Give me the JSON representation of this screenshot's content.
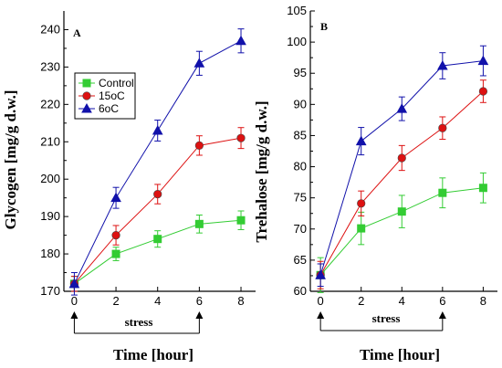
{
  "chart_data": [
    {
      "type": "line",
      "panel": "A",
      "title": "",
      "xlabel": "Time [hour]",
      "ylabel": "Glycogen [mg/g d.w.]",
      "x": [
        0,
        2,
        4,
        6,
        8
      ],
      "xlim": [
        -0.5,
        8.7
      ],
      "ylim": [
        170,
        245
      ],
      "yticks": [
        170,
        180,
        190,
        200,
        210,
        220,
        230,
        240
      ],
      "xticks": [
        0,
        2,
        4,
        6,
        8
      ],
      "grid": false,
      "legend": "top-left",
      "series": [
        {
          "name": "Control",
          "color": "#33cc33",
          "marker": "square",
          "values": [
            172,
            180,
            184,
            188,
            189
          ],
          "errors": [
            2,
            1.8,
            2.2,
            2.4,
            2.5
          ]
        },
        {
          "name": "15oC",
          "color": "#dd1111",
          "marker": "circle",
          "values": [
            172,
            185,
            196,
            209,
            211
          ],
          "errors": [
            2,
            2.6,
            2.6,
            2.6,
            2.8
          ]
        },
        {
          "name": "6oC",
          "color": "#1111aa",
          "marker": "triangle",
          "values": [
            172,
            195,
            213,
            231,
            237
          ],
          "errors": [
            3,
            2.8,
            2.8,
            3.2,
            3.2
          ]
        }
      ],
      "annotation": {
        "text": "stress",
        "from": 0,
        "to": 6
      }
    },
    {
      "type": "line",
      "panel": "B",
      "title": "",
      "xlabel": "Time [hour]",
      "ylabel": "Trehalose [mg/g d.w.]",
      "x": [
        0,
        2,
        4,
        6,
        8
      ],
      "xlim": [
        -0.5,
        8.7
      ],
      "ylim": [
        60,
        105
      ],
      "yticks": [
        60,
        65,
        70,
        75,
        80,
        85,
        90,
        95,
        100,
        105
      ],
      "xticks": [
        0,
        2,
        4,
        6,
        8
      ],
      "grid": false,
      "series": [
        {
          "name": "Control",
          "color": "#33cc33",
          "marker": "square",
          "values": [
            62.6,
            70.1,
            72.8,
            75.8,
            76.6
          ],
          "errors": [
            2.8,
            2.6,
            2.6,
            2.4,
            2.4
          ]
        },
        {
          "name": "15oC",
          "color": "#dd1111",
          "marker": "circle",
          "values": [
            62.6,
            74.1,
            81.4,
            86.2,
            92.1
          ],
          "errors": [
            2.2,
            2.0,
            2.0,
            1.8,
            1.8
          ]
        },
        {
          "name": "6oC",
          "color": "#1111aa",
          "marker": "triangle",
          "values": [
            62.6,
            84.1,
            89.3,
            96.2,
            97.0
          ],
          "errors": [
            1.8,
            2.2,
            1.9,
            2.1,
            2.4
          ]
        }
      ],
      "annotation": {
        "text": "stress",
        "from": 0,
        "to": 6
      }
    }
  ]
}
